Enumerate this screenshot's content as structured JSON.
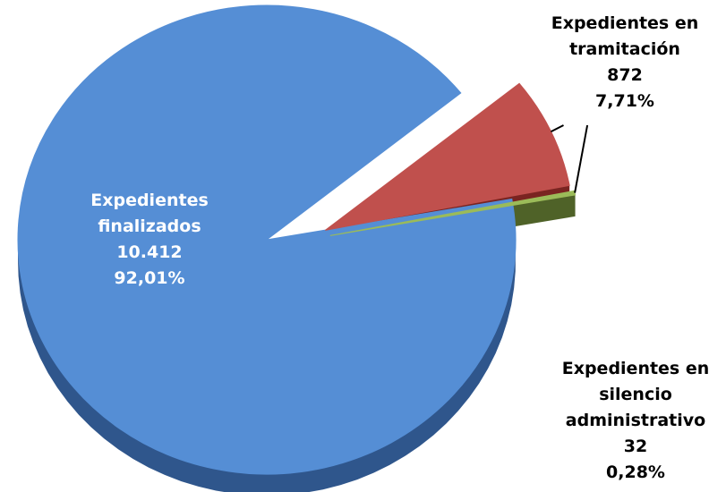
{
  "chart_data": {
    "type": "pie",
    "title": "",
    "slices": [
      {
        "label_lines": [
          "Expedientes",
          "finalizados"
        ],
        "value": 10412,
        "value_label": "10.412",
        "percent": 92.01,
        "percent_label": "92,01%",
        "color": "#558ED5",
        "side_color": "#2F568C",
        "exploded": false
      },
      {
        "label_lines": [
          "Expedientes en",
          "tramitación"
        ],
        "value": 872,
        "value_label": "872",
        "percent": 7.71,
        "percent_label": "7,71%",
        "color": "#C0504D",
        "side_color": "#7A2421",
        "exploded": true
      },
      {
        "label_lines": [
          "Expedientes en",
          "silencio",
          "administrativo"
        ],
        "value": 32,
        "value_label": "32",
        "percent": 0.28,
        "percent_label": "0,28%",
        "color": "#9BBB59",
        "side_color": "#4F6228",
        "exploded": true
      }
    ]
  }
}
